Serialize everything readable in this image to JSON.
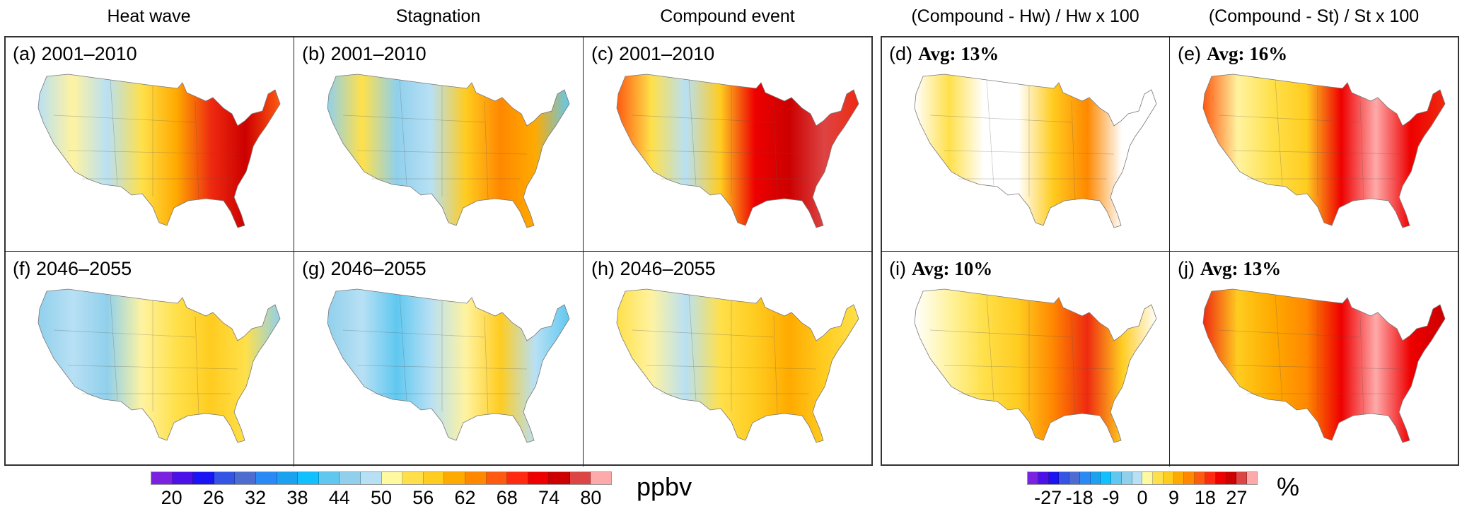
{
  "column_titles": [
    "Heat wave",
    "Stagnation",
    "Compound event",
    "(Compound - Hw) / Hw x 100",
    "(Compound - St) / St x 100"
  ],
  "panels": [
    {
      "tag": "(a) 2001–2010",
      "avg": "",
      "colors": [
        "#b8e0f4",
        "#fff3a0",
        "#b8e0f4",
        "#ffe04a",
        "#ffaa00",
        "#ee2a10",
        "#cc0000",
        "#ff5a10"
      ]
    },
    {
      "tag": "(b) 2001–2010",
      "avg": "",
      "colors": [
        "#90d0ec",
        "#ffe04a",
        "#90d0ec",
        "#b8e0f4",
        "#ffcc20",
        "#ff8800",
        "#ffaa00",
        "#60c8f0"
      ]
    },
    {
      "tag": "(c) 2001–2010",
      "avg": "",
      "colors": [
        "#ff5a10",
        "#ffe04a",
        "#b8e0f4",
        "#ffcc20",
        "#ee0000",
        "#cc0000",
        "#dd4444",
        "#ee2a10"
      ]
    },
    {
      "tag": "(d)",
      "avg": "Avg: 13%",
      "colors": [
        "#ffffff",
        "#ffe04a",
        "#ffffff",
        "#ffffff",
        "#ffcc20",
        "#ff8800",
        "#ffffff",
        "#ffffff"
      ]
    },
    {
      "tag": "(e)",
      "avg": "Avg: 16%",
      "colors": [
        "#ff5a10",
        "#fff3a0",
        "#ffe04a",
        "#ffcc20",
        "#ee0000",
        "#ffaaaa",
        "#ee0000",
        "#ee2a10"
      ]
    },
    {
      "tag": "(f) 2046–2055",
      "avg": "",
      "colors": [
        "#90d0ec",
        "#b8e0f4",
        "#90d0ec",
        "#fff3a0",
        "#ffe04a",
        "#ffcc20",
        "#ffe04a",
        "#90d0ec"
      ]
    },
    {
      "tag": "(g) 2046–2055",
      "avg": "",
      "colors": [
        "#90d0ec",
        "#b8e0f4",
        "#60c8f0",
        "#b8e0f4",
        "#fff3a0",
        "#ffcc20",
        "#b8e0f4",
        "#60c8f0"
      ]
    },
    {
      "tag": "(h) 2046–2055",
      "avg": "",
      "colors": [
        "#ffe04a",
        "#fff3a0",
        "#b8e0f4",
        "#ffe04a",
        "#ffcc20",
        "#ffaa00",
        "#ffcc20",
        "#ffe04a"
      ]
    },
    {
      "tag": "(i)",
      "avg": "Avg: 10%",
      "colors": [
        "#ffffff",
        "#fff3a0",
        "#ffe04a",
        "#ffcc20",
        "#ff8800",
        "#ee2a10",
        "#ffcc20",
        "#ffffff"
      ]
    },
    {
      "tag": "(j)",
      "avg": "Avg: 13%",
      "colors": [
        "#ee2a10",
        "#ffcc20",
        "#ffaa00",
        "#ff8800",
        "#ee0000",
        "#ffaaaa",
        "#ee0000",
        "#cc0000"
      ]
    }
  ],
  "colorbars": [
    {
      "unit": "ppbv",
      "labels": [
        "20",
        "26",
        "32",
        "38",
        "44",
        "50",
        "56",
        "62",
        "68",
        "74",
        "80"
      ]
    },
    {
      "unit": "%",
      "labels": [
        "-27",
        "-18",
        "-9",
        "0",
        "9",
        "18",
        "27"
      ]
    }
  ],
  "palette": [
    "#7a22e0",
    "#4a12e8",
    "#1a14f5",
    "#3454e6",
    "#4c6cd0",
    "#2a8af5",
    "#1aa2f0",
    "#10c0ff",
    "#60c8f0",
    "#90d0ec",
    "#b8e0f4",
    "#fffaa0",
    "#ffe04a",
    "#ffcc20",
    "#ffaa00",
    "#ff8800",
    "#ff5a10",
    "#ff2a10",
    "#ee0000",
    "#cc0000",
    "#dd4444",
    "#ffaaaa"
  ]
}
